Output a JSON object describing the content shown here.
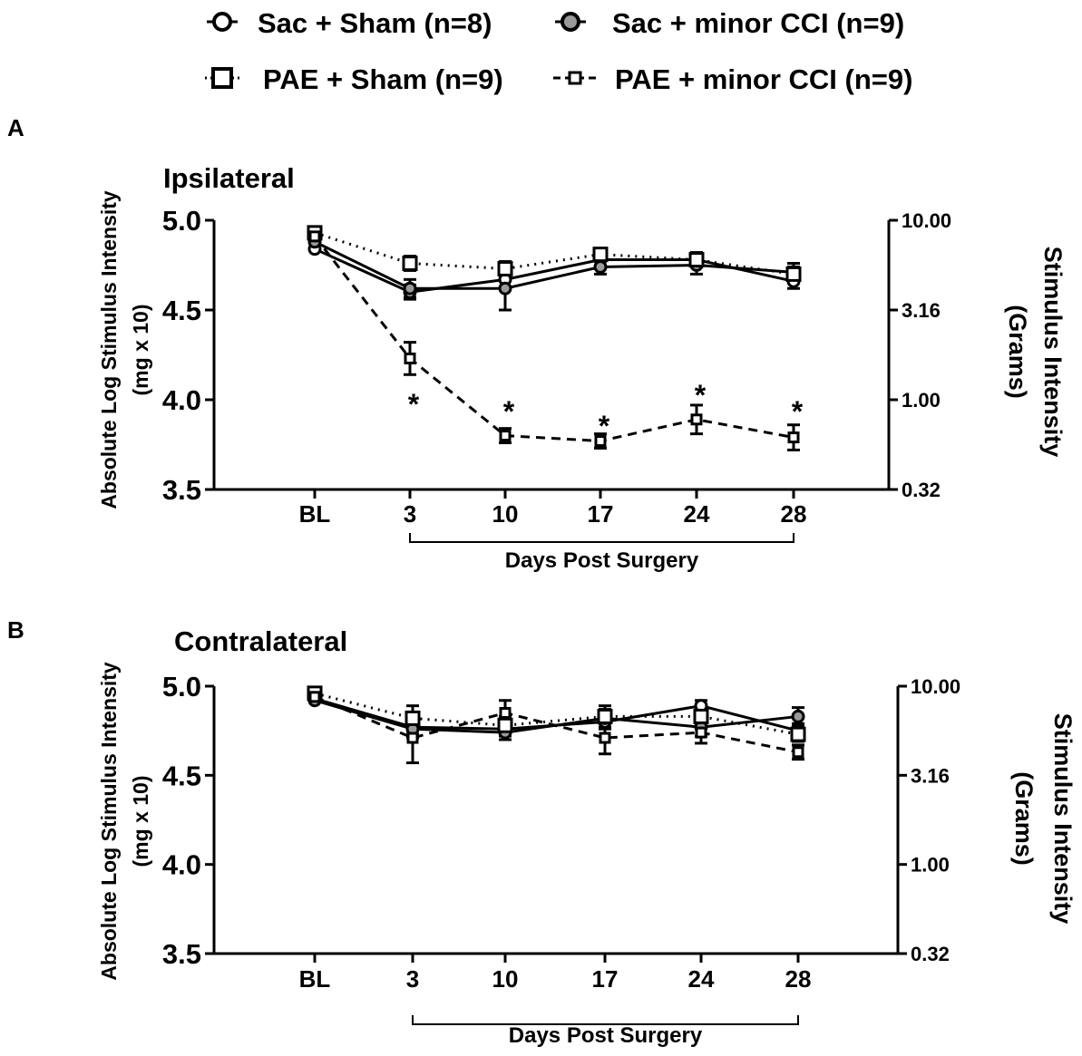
{
  "legend": [
    {
      "label": "Sac + Sham (n=8)",
      "marker": "circle-open"
    },
    {
      "label": "Sac + minor CCI (n=9)",
      "marker": "circle-gray"
    },
    {
      "label": "PAE + Sham (n=9)",
      "marker": "square-open"
    },
    {
      "label": "PAE + minor CCI (n=9)",
      "marker": "square-small"
    }
  ],
  "colors": {
    "gray_fill": "#9a9a9a",
    "line": "#000000"
  },
  "chart_data": [
    {
      "type": "line",
      "panel_letter": "A",
      "title": "Ipsilateral",
      "categories": [
        "BL",
        "3",
        "10",
        "17",
        "24",
        "28"
      ],
      "ylabel_line1": "Absolute Log Stimulus Intensity",
      "ylabel_line2": "(mg x 10)",
      "y2label_line1": "Stimulus Intensity",
      "y2label_line2": "(Grams)",
      "xlabel": "Days Post Surgery",
      "ylim": [
        3.5,
        5.0
      ],
      "yticks": [
        "5.0",
        "4.5",
        "4.0",
        "3.5"
      ],
      "y2ticks": [
        "10.00",
        "3.16",
        "1.00",
        "0.32"
      ],
      "series": [
        {
          "name": "Sac + Sham (n=8)",
          "values": [
            4.84,
            4.6,
            4.67,
            4.78,
            4.78,
            4.66
          ],
          "err": [
            0.0,
            0.04,
            0.05,
            0.04,
            0.04,
            0.04
          ],
          "line": "solid",
          "marker": "circle-open"
        },
        {
          "name": "Sac + minor CCI (n=9)",
          "values": [
            4.88,
            4.62,
            4.62,
            4.74,
            4.75,
            4.71
          ],
          "err": [
            0.0,
            0.05,
            0.12,
            0.04,
            0.05,
            0.05
          ],
          "line": "solid",
          "marker": "circle-gray"
        },
        {
          "name": "PAE + Sham (n=9)",
          "values": [
            4.93,
            4.76,
            4.73,
            4.81,
            4.78,
            4.7
          ],
          "err": [
            0.0,
            0.04,
            0.04,
            0.03,
            0.04,
            0.04
          ],
          "line": "dotted",
          "marker": "square-open"
        },
        {
          "name": "PAE + minor CCI (n=9)",
          "values": [
            4.91,
            4.23,
            3.8,
            3.77,
            3.89,
            3.79
          ],
          "err": [
            0.0,
            0.09,
            0.04,
            0.04,
            0.08,
            0.07
          ],
          "line": "dashed",
          "marker": "square-small"
        }
      ],
      "annotations": [
        {
          "category": "3",
          "text": "*",
          "value": 4.0
        },
        {
          "category": "10",
          "text": "*",
          "value": 3.96
        },
        {
          "category": "17",
          "text": "*",
          "value": 3.88
        },
        {
          "category": "24",
          "text": "*",
          "value": 4.05
        },
        {
          "category": "28",
          "text": "*",
          "value": 3.96
        }
      ]
    },
    {
      "type": "line",
      "panel_letter": "B",
      "title": "Contralateral",
      "categories": [
        "BL",
        "3",
        "10",
        "17",
        "24",
        "28"
      ],
      "ylabel_line1": "Absolute Log Stimulus Intensity",
      "ylabel_line2": "(mg x 10)",
      "y2label_line1": "Stimulus Intensity",
      "y2label_line2": "(Grams)",
      "xlabel": "Days Post Surgery",
      "ylim": [
        3.5,
        5.0
      ],
      "yticks": [
        "5.0",
        "4.5",
        "4.0",
        "3.5"
      ],
      "y2ticks": [
        "10.00",
        "3.16",
        "1.00",
        "0.32"
      ],
      "series": [
        {
          "name": "Sac + Sham (n=8)",
          "values": [
            4.93,
            4.77,
            4.76,
            4.8,
            4.89,
            4.75
          ],
          "err": [
            0.0,
            0.04,
            0.04,
            0.04,
            0.03,
            0.04
          ],
          "line": "solid",
          "marker": "circle-open"
        },
        {
          "name": "Sac + minor CCI (n=9)",
          "values": [
            4.92,
            4.76,
            4.74,
            4.82,
            4.77,
            4.83
          ],
          "err": [
            0.0,
            0.05,
            0.04,
            0.05,
            0.05,
            0.05
          ],
          "line": "solid",
          "marker": "circle-gray"
        },
        {
          "name": "PAE + Sham (n=9)",
          "values": [
            4.96,
            4.82,
            4.78,
            4.83,
            4.83,
            4.73
          ],
          "err": [
            0.0,
            0.07,
            0.05,
            0.06,
            0.04,
            0.04
          ],
          "line": "dotted",
          "marker": "square-open"
        },
        {
          "name": "PAE + minor CCI (n=9)",
          "values": [
            4.94,
            4.71,
            4.85,
            4.71,
            4.74,
            4.63
          ],
          "err": [
            0.0,
            0.14,
            0.07,
            0.09,
            0.06,
            0.04
          ],
          "line": "dashed",
          "marker": "square-small"
        }
      ],
      "annotations": []
    }
  ]
}
